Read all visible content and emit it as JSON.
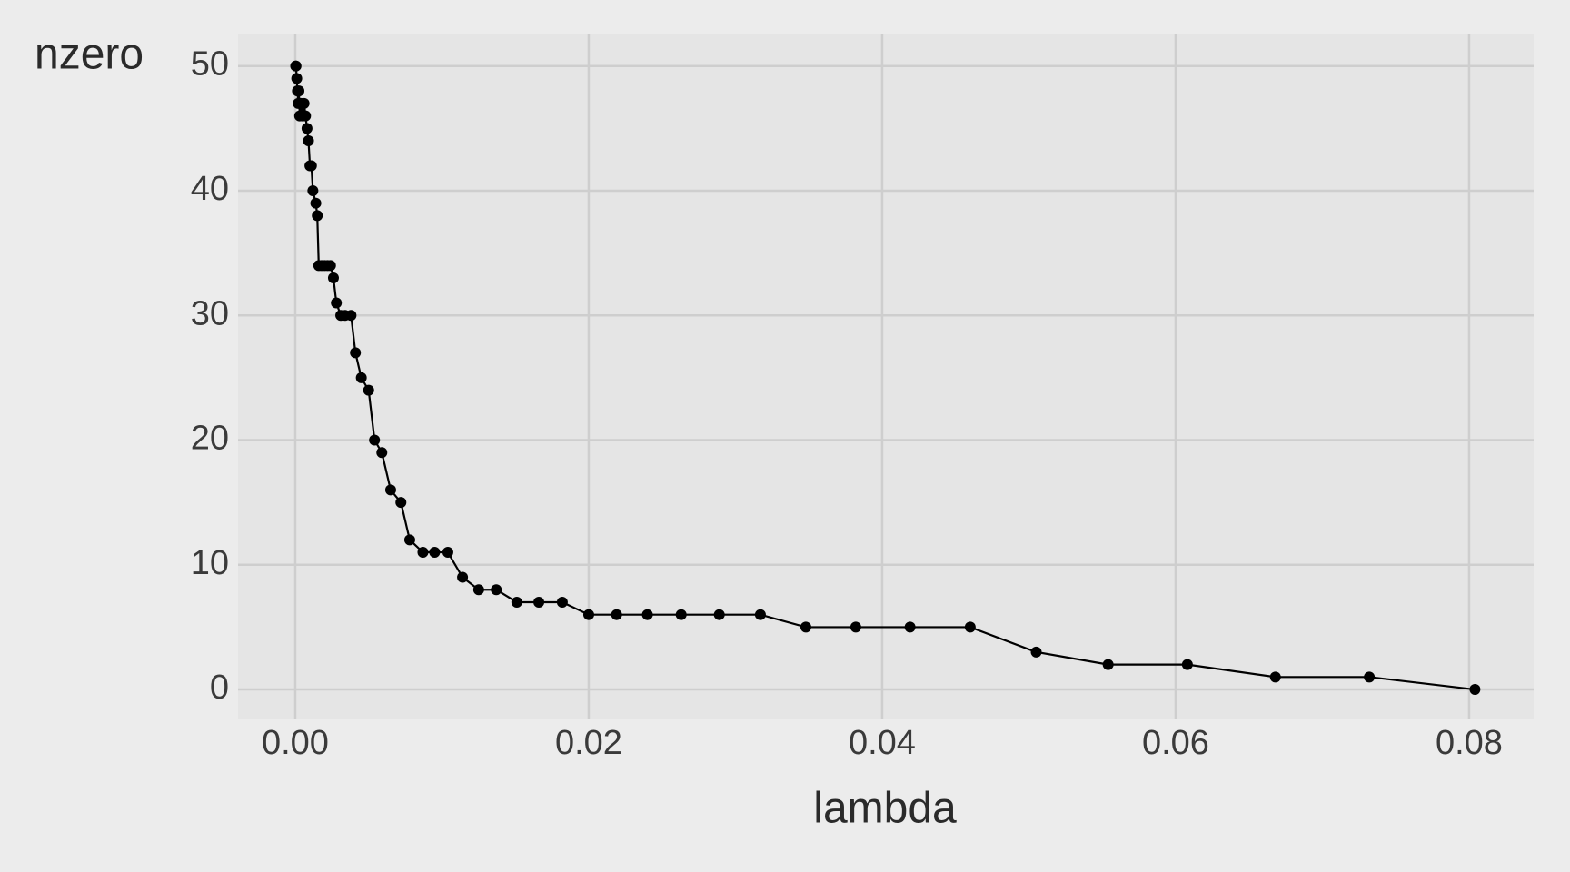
{
  "chart_data": {
    "type": "line",
    "xlabel": "lambda",
    "ylabel": "nzero",
    "x": [
      0.0804,
      0.0732,
      0.0668,
      0.0608,
      0.0554,
      0.0505,
      0.046,
      0.0419,
      0.0382,
      0.0348,
      0.0317,
      0.0289,
      0.0263,
      0.024,
      0.0219,
      0.02,
      0.0182,
      0.0166,
      0.0151,
      0.0137,
      0.0125,
      0.0114,
      0.0104,
      0.0095,
      0.0087,
      0.0078,
      0.0072,
      0.0065,
      0.0059,
      0.0054,
      0.005,
      0.0045,
      0.0041,
      0.0038,
      0.0034,
      0.0031,
      0.0028,
      0.0026,
      0.0024,
      0.0022,
      0.002,
      0.0018,
      0.0016,
      0.0015,
      0.0014,
      0.0012,
      0.0011,
      0.001,
      0.0009,
      0.0008,
      0.0007,
      0.0006,
      0.0005,
      0.0004,
      0.0003,
      0.00025,
      0.0002,
      0.00015,
      0.0001,
      5e-05,
      3e-05
    ],
    "y": [
      0,
      1,
      1,
      2,
      2,
      3,
      5,
      5,
      5,
      5,
      6,
      6,
      6,
      6,
      6,
      6,
      7,
      7,
      7,
      8,
      8,
      9,
      11,
      11,
      11,
      12,
      15,
      16,
      19,
      20,
      24,
      25,
      27,
      30,
      30,
      30,
      31,
      33,
      34,
      34,
      34,
      34,
      34,
      38,
      39,
      40,
      42,
      42,
      44,
      45,
      46,
      47,
      46,
      47,
      46,
      48,
      47,
      48,
      49,
      50,
      50
    ],
    "color": "#000000",
    "xlim": [
      -0.0039,
      0.0844
    ],
    "ylim": [
      -2.4,
      52.6
    ],
    "xticks": [
      {
        "value": 0,
        "label": "0.00"
      },
      {
        "value": 0.02,
        "label": "0.02"
      },
      {
        "value": 0.04,
        "label": "0.04"
      },
      {
        "value": 0.06,
        "label": "0.06"
      },
      {
        "value": 0.08,
        "label": "0.08"
      }
    ],
    "yticks": [
      0,
      10,
      20,
      30,
      40,
      50
    ],
    "grid": true
  }
}
